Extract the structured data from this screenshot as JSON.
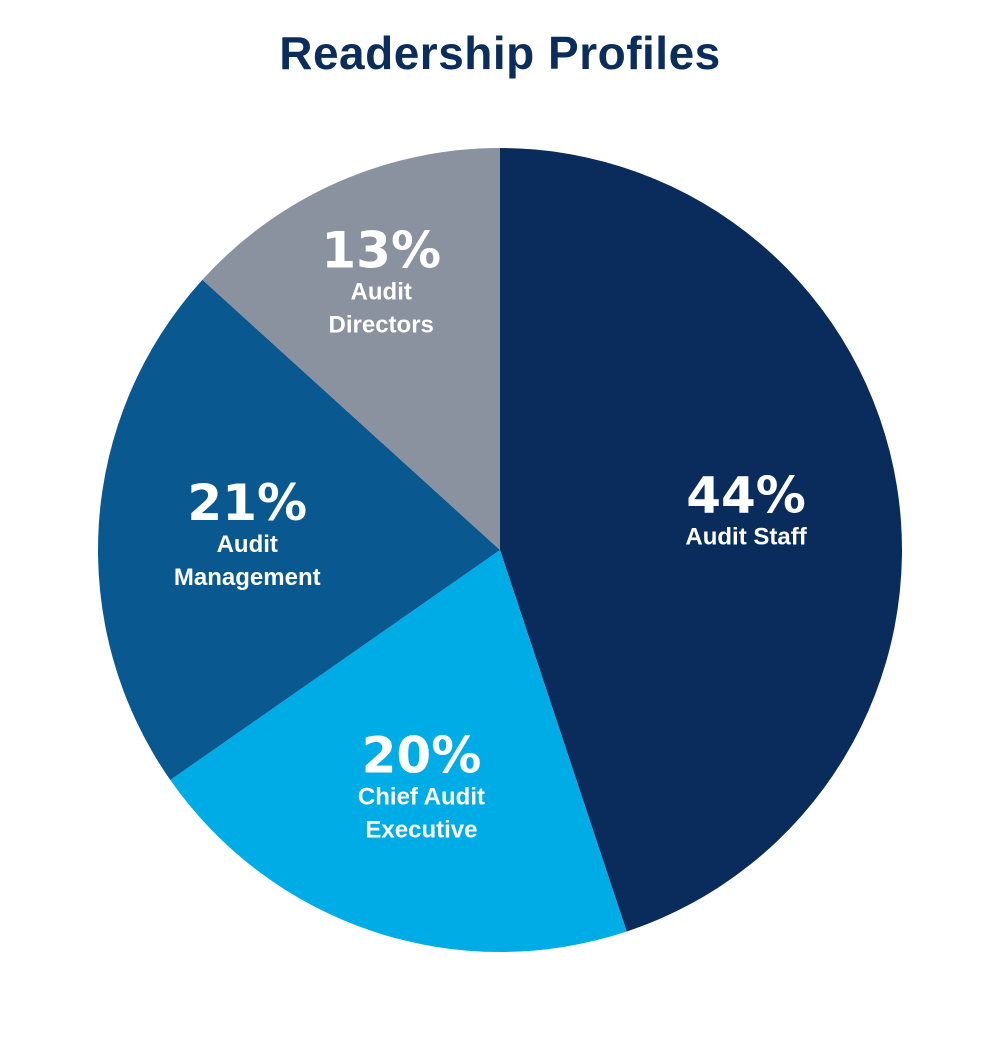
{
  "chart_data": {
    "type": "pie",
    "title": "Readership Profiles",
    "title_color": "#0b2d5b",
    "slices": [
      {
        "label_lines": [
          "Audit Staff"
        ],
        "value": 44,
        "value_label": "44%",
        "color": "#0a2c5c"
      },
      {
        "label_lines": [
          "Chief Audit",
          "Executive"
        ],
        "value": 20,
        "value_label": "20%",
        "color": "#00ace6"
      },
      {
        "label_lines": [
          "Audit",
          "Management"
        ],
        "value": 21,
        "value_label": "21%",
        "color": "#0a5890"
      },
      {
        "label_lines": [
          "Audit",
          "Directors"
        ],
        "value": 13,
        "value_label": "13%",
        "color": "#8a919f"
      }
    ],
    "start": "12 o'clock",
    "direction": "clockwise",
    "legend": "none"
  }
}
